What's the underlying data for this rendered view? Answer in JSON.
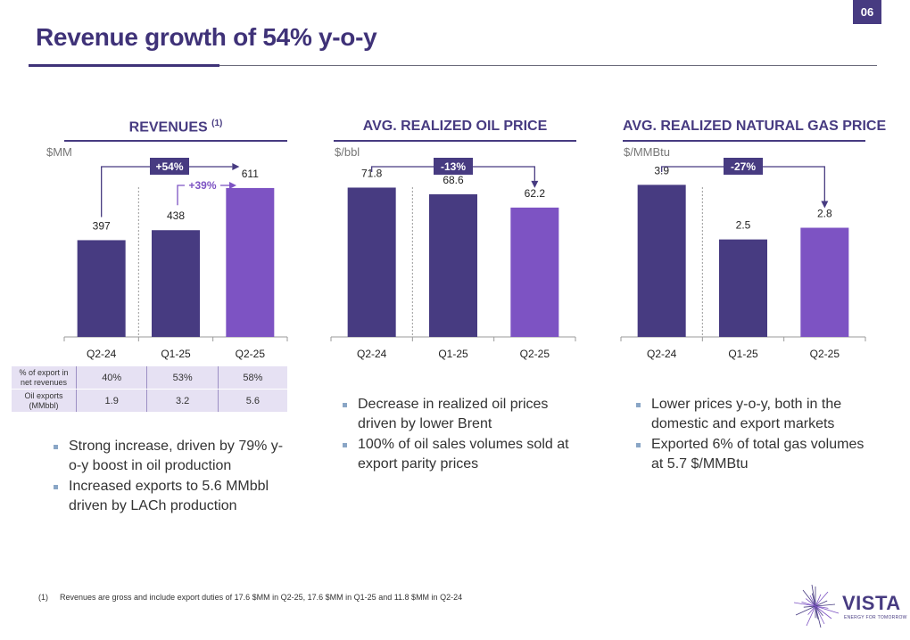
{
  "page": {
    "number": "06",
    "title": "Revenue growth of 54% y-o-y"
  },
  "colors": {
    "dark": "#473b81",
    "light": "#7d53c3",
    "title": "#3f3278",
    "grid": "#9a9a9a"
  },
  "chart_data": [
    {
      "type": "bar",
      "title": "REVENUES",
      "title_note": "(1)",
      "unit": "$MM",
      "categories": [
        "Q2-24",
        "Q1-25",
        "Q2-25"
      ],
      "values": [
        397,
        438,
        611
      ],
      "value_labels": [
        "397",
        "438",
        "611"
      ],
      "ylim": [
        0,
        640
      ],
      "highlight_index": 2,
      "indicators": [
        {
          "label": "+54%",
          "from": 0,
          "to": 2,
          "style": "box"
        },
        {
          "label": "+39%",
          "from": 1,
          "to": 2,
          "style": "text"
        }
      ]
    },
    {
      "type": "bar",
      "title": "AVG. REALIZED OIL PRICE",
      "title_note": "",
      "unit": "$/bbl",
      "categories": [
        "Q2-24",
        "Q1-25",
        "Q2-25"
      ],
      "values": [
        71.8,
        68.6,
        62.2
      ],
      "value_labels": [
        "71.8",
        "68.6",
        "62.2"
      ],
      "ylim": [
        0,
        75
      ],
      "highlight_index": 2,
      "indicators": [
        {
          "label": "-13%",
          "from": 0,
          "to": 2,
          "style": "box"
        }
      ]
    },
    {
      "type": "bar",
      "title": "AVG. REALIZED NATURAL GAS PRICE",
      "title_note": "",
      "unit": "$/MMBtu",
      "categories": [
        "Q2-24",
        "Q1-25",
        "Q2-25"
      ],
      "values": [
        3.9,
        2.5,
        2.8
      ],
      "value_labels": [
        "3.9",
        "2.5",
        "2.8"
      ],
      "ylim": [
        0,
        4.0
      ],
      "highlight_index": 2,
      "indicators": [
        {
          "label": "-27%",
          "from": 0,
          "to": 2,
          "style": "box"
        }
      ]
    }
  ],
  "export_table": {
    "rows": [
      {
        "label_line1": "% of export in",
        "label_line2": "net revenues",
        "values": [
          "40%",
          "53%",
          "58%"
        ]
      },
      {
        "label_line1": "Oil exports",
        "label_line2": "(MMbbl)",
        "values": [
          "1.9",
          "3.2",
          "5.6"
        ]
      }
    ]
  },
  "bullets": {
    "revenues": [
      "Strong increase, driven by 79% y-o-y boost in oil production",
      "Increased exports to 5.6 MMbbl driven by LACh production"
    ],
    "oil": [
      "Decrease in realized oil prices driven by lower Brent",
      "100% of oil sales volumes sold at export parity prices"
    ],
    "gas": [
      "Lower prices y-o-y, both in the domestic and export markets",
      "Exported 6% of total gas volumes at 5.7 $/MMBtu"
    ]
  },
  "footnote": {
    "number": "(1)",
    "text": "Revenues are gross and include export duties of 17.6 $MM in Q2-25, 17.6 $MM in Q1-25 and 11.8 $MM in Q2-24"
  },
  "logo": {
    "name": "VISTA",
    "tagline": "ENERGY FOR TOMORROW"
  }
}
